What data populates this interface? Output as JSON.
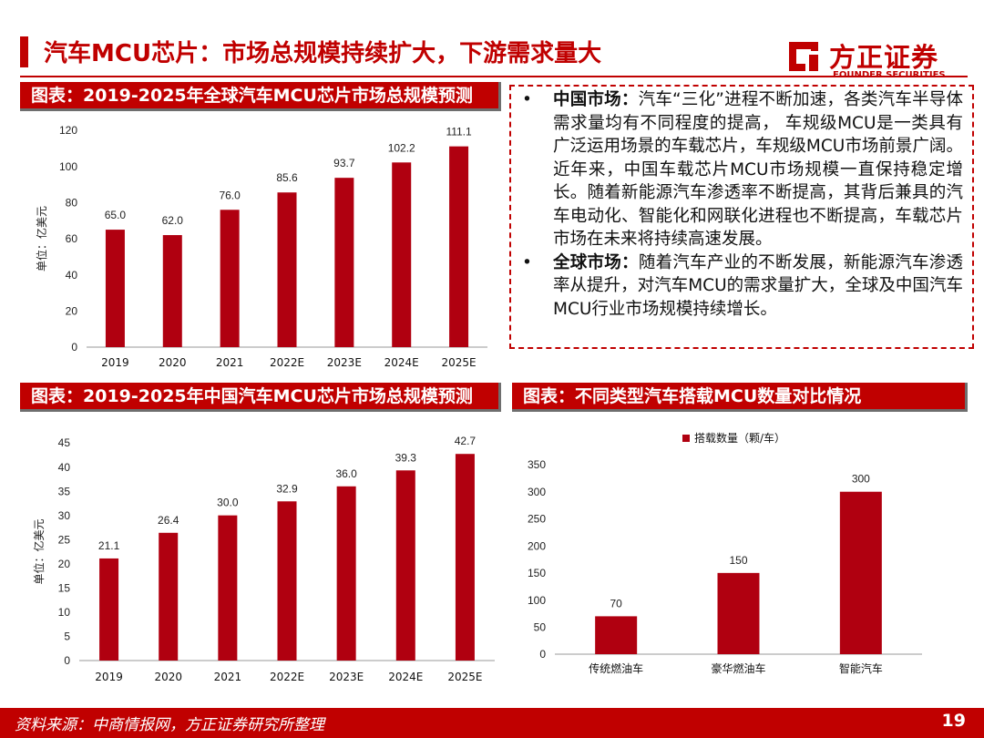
{
  "header": {
    "title": "汽车MCU芯片：市场总规模持续扩大，下游需求量大",
    "logo_cn": "方正证券",
    "logo_en": "FOUNDER SECURITIES",
    "brand_color": "#c00000"
  },
  "panels": {
    "global_title": "图表：2019-2025年全球汽车MCU芯片市场总规模预测",
    "china_title": "图表：2019-2025年中国汽车MCU芯片市场总规模预测",
    "types_title": "图表：不同类型汽车搭载MCU数量对比情况"
  },
  "bullets": [
    {
      "label": "中国市场：",
      "text": "汽车“三化”进程不断加速，各类汽车半导体需求量均有不同程度的提高， 车规级MCU是一类具有广泛运用场景的车载芯片，车规级MCU市场前景广阔。近年来，中国车载芯片MCU市场规模一直保持稳定增长。随着新能源汽车渗透率不断提高，其背后兼具的汽车电动化、智能化和网联化进程也不断提高，车载芯片市场在未来将持续高速发展。"
    },
    {
      "label": "全球市场：",
      "text": "随着汽车产业的不断发展，新能源汽车渗透率从提升，对汽车MCU的需求量扩大，全球及中国汽车MCU行业市场规模持续增长。"
    }
  ],
  "footer": {
    "source": "资料来源：中商情报网，方正证券研究所整理",
    "page": "19"
  },
  "chart_data": [
    {
      "id": "global",
      "type": "bar",
      "categories": [
        "2019",
        "2020",
        "2021",
        "2022E",
        "2023E",
        "2024E",
        "2025E"
      ],
      "values": [
        65.0,
        62.0,
        76.0,
        85.6,
        93.7,
        102.2,
        111.1
      ],
      "labels": [
        "65.0",
        "62.0",
        "76.0",
        "85.6",
        "93.7",
        "102.2",
        "111.1"
      ],
      "ylabel": "单位：亿美元",
      "ylim": [
        0,
        120
      ],
      "yticks": [
        0,
        20,
        40,
        60,
        80,
        100,
        120
      ],
      "color": "#b00010",
      "grid": false
    },
    {
      "id": "china",
      "type": "bar",
      "categories": [
        "2019",
        "2020",
        "2021",
        "2022E",
        "2023E",
        "2024E",
        "2025E"
      ],
      "values": [
        21.1,
        26.4,
        30.0,
        32.9,
        36.0,
        39.3,
        42.7
      ],
      "labels": [
        "21.1",
        "26.4",
        "30.0",
        "32.9",
        "36.0",
        "39.3",
        "42.7"
      ],
      "ylabel": "单位：亿美元",
      "ylim": [
        0,
        45
      ],
      "yticks": [
        0,
        5,
        10,
        15,
        20,
        25,
        30,
        35,
        40,
        45
      ],
      "color": "#b00010",
      "grid": false
    },
    {
      "id": "types",
      "type": "bar",
      "categories": [
        "传统燃油车",
        "豪华燃油车",
        "智能汽车"
      ],
      "values": [
        70,
        150,
        300
      ],
      "labels": [
        "70",
        "150",
        "300"
      ],
      "series": [
        {
          "name": "搭载数量（颗/车）",
          "values": [
            70,
            150,
            300
          ]
        }
      ],
      "ylim": [
        0,
        350
      ],
      "yticks": [
        0,
        50,
        100,
        150,
        200,
        250,
        300,
        350
      ],
      "legend": "top",
      "color": "#b00010",
      "grid": false
    }
  ]
}
